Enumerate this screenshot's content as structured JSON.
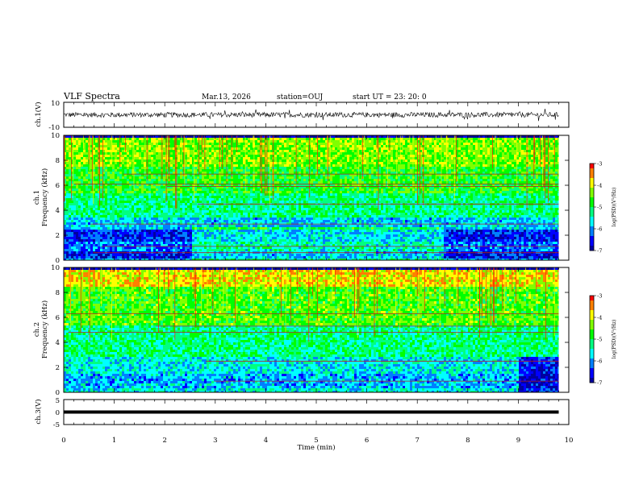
{
  "header": {
    "title": "VLF Spectra",
    "date": "Mar.13, 2026",
    "station": "station=OUJ",
    "start_ut": "start UT =  23: 20: 0"
  },
  "colors": {
    "colormap": [
      "#0000a0",
      "#0000ff",
      "#0080ff",
      "#00ffff",
      "#00ff80",
      "#00ff00",
      "#80ff00",
      "#ffff00",
      "#ff8000",
      "#ff0000",
      "#ffffff"
    ],
    "waveform": "#000000"
  },
  "chart_data": [
    {
      "type": "line",
      "name": "ch1-waveform",
      "ylabel": "ch.1(V)",
      "ylim": [
        -10,
        10
      ],
      "yticks": [
        "10",
        "-10"
      ],
      "xlim": [
        0,
        10
      ],
      "baseline": 0,
      "amplitude_range": [
        -2,
        2
      ],
      "data_end_min": 9.8
    },
    {
      "type": "heatmap",
      "name": "ch1-spectrogram",
      "ylabel": "ch.1 Frequency (kHz)",
      "ylabel_lines": [
        "ch.1",
        "Frequency (kHz)"
      ],
      "ylim": [
        0,
        10
      ],
      "yticks": [
        "0",
        "2",
        "4",
        "6",
        "8",
        "10"
      ],
      "xlim": [
        0,
        10
      ],
      "data_end_min": 9.8,
      "colorbar": {
        "label": "log(PSD)(V²/Hz)",
        "range": [
          -7,
          -3
        ],
        "ticks": [
          "-3",
          "-4",
          "-5",
          "-6",
          "-7"
        ]
      },
      "bands": [
        {
          "f": [
            0.0,
            0.3
          ],
          "level": -6.0
        },
        {
          "f": [
            0.3,
            0.9
          ],
          "level": -6.6
        },
        {
          "f": [
            0.9,
            1.6
          ],
          "level": -6.2
        },
        {
          "f": [
            1.6,
            2.6
          ],
          "level": -6.5
        },
        {
          "f": [
            2.6,
            3.5
          ],
          "level": -5.8
        },
        {
          "f": [
            3.5,
            5.5
          ],
          "level": -5.2
        },
        {
          "f": [
            5.5,
            7.5
          ],
          "level": -4.8
        },
        {
          "f": [
            7.5,
            10.0
          ],
          "level": -4.4
        }
      ],
      "lines_khz": [
        0.6,
        1.1,
        2.9,
        4.5,
        5.9,
        6.1,
        6.9
      ]
    },
    {
      "type": "heatmap",
      "name": "ch2-spectrogram",
      "ylabel": "ch.2 Frequency (kHz)",
      "ylabel_lines": [
        "ch.2",
        "Frequency (kHz)"
      ],
      "ylim": [
        0,
        10
      ],
      "yticks": [
        "0",
        "2",
        "4",
        "6",
        "8",
        "10"
      ],
      "xlim": [
        0,
        10
      ],
      "data_end_min": 9.8,
      "colorbar": {
        "label": "log(PSD)(V²/Hz)",
        "range": [
          -7,
          -3
        ],
        "ticks": [
          "-3",
          "-4",
          "-5",
          "-6",
          "-7"
        ]
      },
      "bands": [
        {
          "f": [
            0.0,
            0.5
          ],
          "level": -5.6
        },
        {
          "f": [
            0.5,
            1.6
          ],
          "level": -5.9
        },
        {
          "f": [
            1.6,
            3.0
          ],
          "level": -5.6
        },
        {
          "f": [
            3.0,
            5.5
          ],
          "level": -5.2
        },
        {
          "f": [
            5.5,
            8.5
          ],
          "level": -4.6
        },
        {
          "f": [
            8.5,
            10.0
          ],
          "level": -3.9
        }
      ],
      "lines_khz": [
        0.9,
        2.5,
        4.8,
        5.3,
        6.3
      ]
    },
    {
      "type": "line",
      "name": "ch3-waveform",
      "ylabel": "ch.3(V)",
      "ylim": [
        -5,
        5
      ],
      "yticks": [
        "5",
        "0",
        "-5"
      ],
      "xlim": [
        0,
        10
      ],
      "xlabel": "Time (min)",
      "xticks": [
        "0",
        "1",
        "2",
        "3",
        "4",
        "5",
        "6",
        "7",
        "8",
        "9",
        "10"
      ],
      "baseline": 0,
      "data_end_min": 9.8
    }
  ]
}
